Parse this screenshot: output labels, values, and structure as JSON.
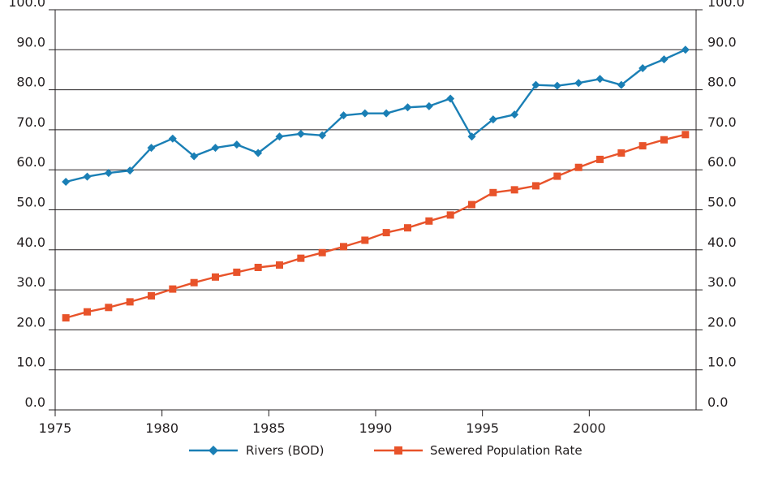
{
  "chart_data": {
    "type": "line",
    "title": "",
    "xlabel": "",
    "ylabel": "",
    "xlim": [
      1975,
      2005
    ],
    "ylim": [
      0,
      100
    ],
    "y_ticks": [
      "0.0",
      "10.0",
      "20.0",
      "30.0",
      "40.0",
      "50.0",
      "60.0",
      "70.0",
      "80.0",
      "90.0",
      "100.0"
    ],
    "x_ticks": [
      "1975",
      "1980",
      "1985",
      "1990",
      "1995",
      "2000"
    ],
    "grid": "horizontal",
    "legend_position": "bottom",
    "series": [
      {
        "name": "Rivers (BOD)",
        "color": "#1a7fb5",
        "marker": "diamond",
        "x": [
          1975.5,
          1976.5,
          1977.5,
          1978.5,
          1979.5,
          1980.5,
          1981.5,
          1982.5,
          1983.5,
          1984.5,
          1985.5,
          1986.5,
          1987.5,
          1988.5,
          1989.5,
          1990.5,
          1991.5,
          1992.5,
          1993.5,
          1994.5,
          1995.5,
          1996.5,
          1997.5,
          1998.5,
          1999.5,
          2000.5,
          2001.5,
          2002.5,
          2003.5,
          2004.5
        ],
        "values": [
          57.0,
          58.3,
          59.2,
          59.8,
          65.5,
          67.8,
          63.4,
          65.5,
          66.3,
          64.2,
          68.3,
          69.0,
          68.6,
          73.6,
          74.1,
          74.1,
          75.6,
          75.9,
          77.8,
          68.3,
          72.6,
          73.8,
          81.2,
          81.0,
          81.7,
          82.7,
          81.2,
          85.4,
          87.6,
          90.0
        ]
      },
      {
        "name": "Sewered Population Rate",
        "color": "#e8532a",
        "marker": "square",
        "x": [
          1975.5,
          1976.5,
          1977.5,
          1978.5,
          1979.5,
          1980.5,
          1981.5,
          1982.5,
          1983.5,
          1984.5,
          1985.5,
          1986.5,
          1987.5,
          1988.5,
          1989.5,
          1990.5,
          1991.5,
          1992.5,
          1993.5,
          1994.5,
          1995.5,
          1996.5,
          1997.5,
          1998.5,
          1999.5,
          2000.5,
          2001.5,
          2002.5,
          2003.5,
          2004.5
        ],
        "values": [
          23.0,
          24.5,
          25.6,
          27.0,
          28.5,
          30.2,
          31.8,
          33.2,
          34.4,
          35.6,
          36.2,
          37.9,
          39.3,
          40.8,
          42.4,
          44.3,
          45.5,
          47.2,
          48.7,
          51.3,
          54.3,
          55.0,
          56.0,
          58.4,
          60.6,
          62.6,
          64.2,
          66.0,
          67.5,
          68.8
        ]
      }
    ]
  }
}
